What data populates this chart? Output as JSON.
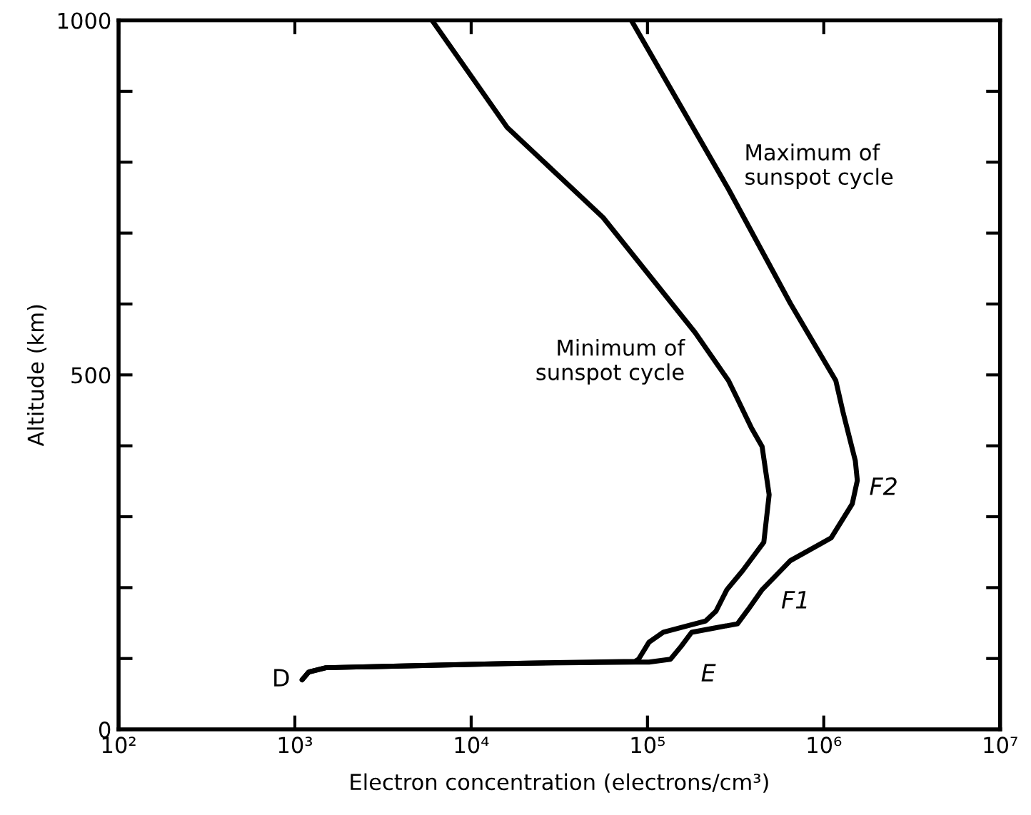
{
  "chart_data": {
    "type": "line",
    "xlabel": "Electron concentration (electrons/cm³)",
    "ylabel": "Altitude (km)",
    "log": "x",
    "grid": false,
    "legend": false,
    "marker": "none",
    "line_style": "solid",
    "xlim": [
      100,
      10000000
    ],
    "ylim": [
      0,
      1000
    ],
    "xticks": [
      {
        "value": 100,
        "label": "10²"
      },
      {
        "value": 1000,
        "label": "10³"
      },
      {
        "value": 10000,
        "label": "10⁴"
      },
      {
        "value": 100000,
        "label": "10⁵"
      },
      {
        "value": 1000000,
        "label": "10⁶"
      },
      {
        "value": 10000000,
        "label": "10⁷"
      }
    ],
    "yticks": [
      0,
      {
        "value": 100,
        "label": null
      },
      {
        "value": 200,
        "label": null
      },
      {
        "value": 300,
        "label": null
      },
      {
        "value": 400,
        "label": null
      },
      500,
      {
        "value": 600,
        "label": null
      },
      {
        "value": 700,
        "label": null
      },
      {
        "value": 800,
        "label": null
      },
      {
        "value": 900,
        "label": null
      },
      1000
    ],
    "series": [
      {
        "name": "Minimum of\nsunspot cycle",
        "color": "#000000",
        "x": [
          1100,
          1200,
          1500,
          16000,
          85000,
          89000,
          102000,
          123000,
          214000,
          245000,
          282000,
          347000,
          457000,
          490000,
          447000,
          389000,
          324000,
          288000,
          186000,
          56000,
          16000,
          6000
        ],
        "values": [
          70,
          81,
          87,
          93,
          96,
          99,
          123,
          137,
          153,
          167,
          197,
          224,
          264,
          331,
          399,
          425,
          466,
          492,
          560,
          722,
          849,
          1000
        ]
      },
      {
        "name": "Maximum of\nsunspot cycle",
        "color": "#000000",
        "x": [
          1100,
          1200,
          1500,
          16000,
          85000,
          102000,
          135000,
          155000,
          178000,
          240000,
          324000,
          372000,
          447000,
          646000,
          1100000,
          1450000,
          1550000,
          1510000,
          1290000,
          1170000,
          646000,
          288000,
          81000
        ],
        "values": [
          70,
          81,
          87,
          93,
          95,
          95,
          99,
          117,
          137,
          143,
          149,
          169,
          197,
          238,
          270,
          318,
          351,
          379,
          446,
          492,
          601,
          762,
          1000
        ]
      }
    ],
    "annotations": [
      {
        "text": "D",
        "x": 1100,
        "y": 70
      },
      {
        "text": "E",
        "x": 155000,
        "y": 110
      },
      {
        "text": "F1",
        "x": 420000,
        "y": 180
      },
      {
        "text": "F2",
        "x": 1550000,
        "y": 340
      }
    ]
  }
}
